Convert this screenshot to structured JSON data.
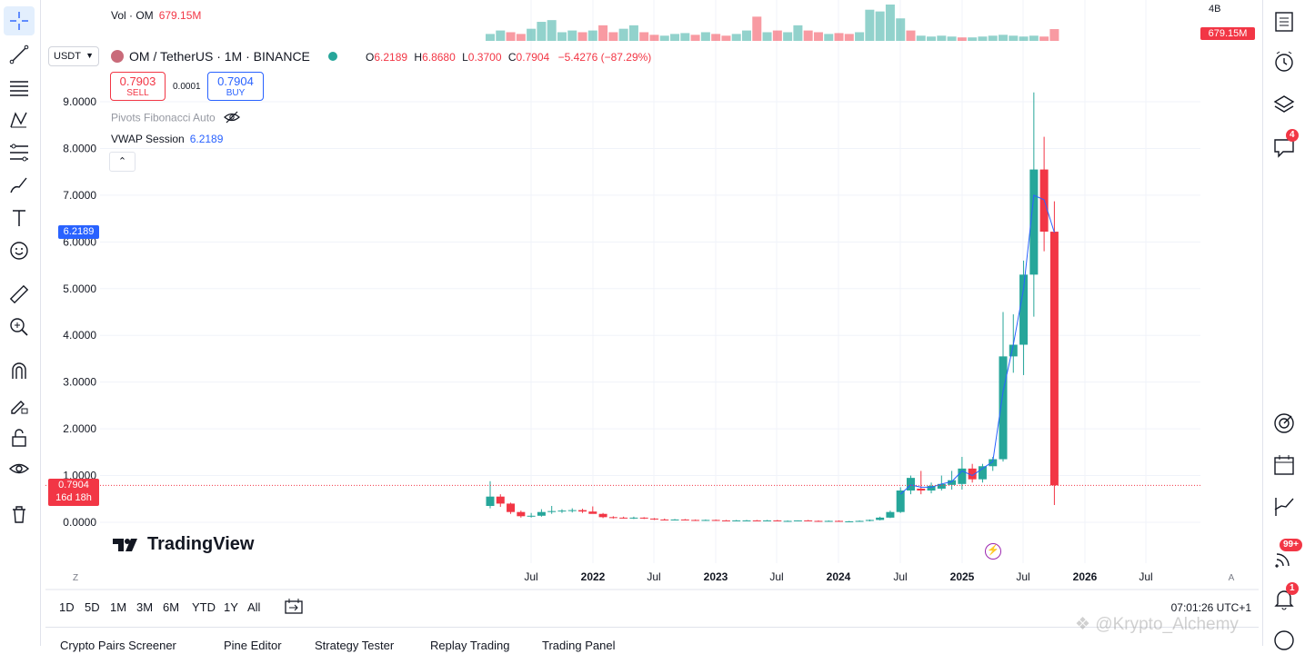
{
  "symbol_bar": {
    "currency": "USDT",
    "title": "OM / TetherUS · 1M · BINANCE"
  },
  "ohlc": {
    "o_label": "O",
    "o": "6.2189",
    "h_label": "H",
    "h": "6.8680",
    "l_label": "L",
    "l": "0.3700",
    "c_label": "C",
    "c": "0.7904",
    "change": "−5.4276 (−87.29%)"
  },
  "trade": {
    "sell_price": "0.7903",
    "sell_label": "SELL",
    "spread": "0.0001",
    "buy_price": "0.7904",
    "buy_label": "BUY"
  },
  "indicators": {
    "fib": "Pivots Fibonacci Auto",
    "vwap_name": "VWAP Session",
    "vwap_value": "6.2189"
  },
  "volume": {
    "label": "Vol · OM",
    "value": "679.15M",
    "scale_top": "4B",
    "badge": "679.15M"
  },
  "price_axis": {
    "ticks": [
      "9.0000",
      "8.0000",
      "7.0000",
      "6.0000",
      "5.0000",
      "4.0000",
      "3.0000",
      "2.0000",
      "1.0000",
      "0.0000"
    ],
    "vwap_badge": "6.2189",
    "last_price_badge": "0.7904",
    "countdown": "16d 18h"
  },
  "time_axis": {
    "ticks": [
      {
        "label": "Jul",
        "bold": false
      },
      {
        "label": "2022",
        "bold": true
      },
      {
        "label": "Jul",
        "bold": false
      },
      {
        "label": "2023",
        "bold": true
      },
      {
        "label": "Jul",
        "bold": false
      },
      {
        "label": "2024",
        "bold": true
      },
      {
        "label": "Jul",
        "bold": false
      },
      {
        "label": "2025",
        "bold": true
      },
      {
        "label": "Jul",
        "bold": false
      },
      {
        "label": "2026",
        "bold": true
      },
      {
        "label": "Jul",
        "bold": false
      }
    ],
    "z_label": "Z",
    "a_label": "A"
  },
  "timeframes": [
    "1D",
    "5D",
    "1M",
    "3M",
    "6M",
    "YTD",
    "1Y",
    "All"
  ],
  "clock": "07:01:26 UTC+1",
  "panel_tabs": [
    "Crypto Pairs Screener",
    "Pine Editor",
    "Strategy Tester",
    "Replay Trading",
    "Trading Panel"
  ],
  "branding": {
    "logo_text": "TradingView",
    "watermark": "@Krypto_Alchemy"
  },
  "badges": {
    "chat": "4",
    "news": "99+",
    "alerts": "1"
  },
  "colors": {
    "up": "#26a69a",
    "down": "#f23645",
    "vwap": "#2962ff",
    "accent": "#2962ff"
  },
  "candles": [
    {
      "t": 0,
      "o": 0.35,
      "h": 0.88,
      "l": 0.3,
      "c": 0.55
    },
    {
      "t": 1,
      "o": 0.55,
      "h": 0.6,
      "l": 0.33,
      "c": 0.4
    },
    {
      "t": 2,
      "o": 0.4,
      "h": 0.42,
      "l": 0.18,
      "c": 0.22
    },
    {
      "t": 3,
      "o": 0.22,
      "h": 0.25,
      "l": 0.1,
      "c": 0.13
    },
    {
      "t": 4,
      "o": 0.13,
      "h": 0.2,
      "l": 0.1,
      "c": 0.14
    },
    {
      "t": 5,
      "o": 0.14,
      "h": 0.28,
      "l": 0.12,
      "c": 0.22
    },
    {
      "t": 6,
      "o": 0.22,
      "h": 0.35,
      "l": 0.18,
      "c": 0.24
    },
    {
      "t": 7,
      "o": 0.24,
      "h": 0.28,
      "l": 0.2,
      "c": 0.25
    },
    {
      "t": 8,
      "o": 0.25,
      "h": 0.3,
      "l": 0.21,
      "c": 0.26
    },
    {
      "t": 9,
      "o": 0.26,
      "h": 0.29,
      "l": 0.2,
      "c": 0.23
    },
    {
      "t": 10,
      "o": 0.23,
      "h": 0.34,
      "l": 0.2,
      "c": 0.18
    },
    {
      "t": 11,
      "o": 0.18,
      "h": 0.2,
      "l": 0.09,
      "c": 0.11
    },
    {
      "t": 12,
      "o": 0.11,
      "h": 0.13,
      "l": 0.08,
      "c": 0.1
    },
    {
      "t": 13,
      "o": 0.1,
      "h": 0.12,
      "l": 0.08,
      "c": 0.09
    },
    {
      "t": 14,
      "o": 0.09,
      "h": 0.12,
      "l": 0.07,
      "c": 0.1
    },
    {
      "t": 15,
      "o": 0.1,
      "h": 0.11,
      "l": 0.07,
      "c": 0.08
    },
    {
      "t": 16,
      "o": 0.08,
      "h": 0.09,
      "l": 0.05,
      "c": 0.06
    },
    {
      "t": 17,
      "o": 0.06,
      "h": 0.08,
      "l": 0.04,
      "c": 0.05
    },
    {
      "t": 18,
      "o": 0.05,
      "h": 0.07,
      "l": 0.04,
      "c": 0.06
    },
    {
      "t": 19,
      "o": 0.06,
      "h": 0.07,
      "l": 0.04,
      "c": 0.05
    },
    {
      "t": 20,
      "o": 0.05,
      "h": 0.06,
      "l": 0.03,
      "c": 0.04
    },
    {
      "t": 21,
      "o": 0.04,
      "h": 0.06,
      "l": 0.03,
      "c": 0.05
    },
    {
      "t": 22,
      "o": 0.05,
      "h": 0.06,
      "l": 0.03,
      "c": 0.04
    },
    {
      "t": 23,
      "o": 0.04,
      "h": 0.05,
      "l": 0.03,
      "c": 0.03
    },
    {
      "t": 24,
      "o": 0.03,
      "h": 0.05,
      "l": 0.02,
      "c": 0.04
    },
    {
      "t": 25,
      "o": 0.04,
      "h": 0.05,
      "l": 0.03,
      "c": 0.04
    },
    {
      "t": 26,
      "o": 0.04,
      "h": 0.05,
      "l": 0.03,
      "c": 0.03
    },
    {
      "t": 27,
      "o": 0.03,
      "h": 0.05,
      "l": 0.02,
      "c": 0.04
    },
    {
      "t": 28,
      "o": 0.04,
      "h": 0.05,
      "l": 0.02,
      "c": 0.03
    },
    {
      "t": 29,
      "o": 0.03,
      "h": 0.04,
      "l": 0.02,
      "c": 0.03
    },
    {
      "t": 30,
      "o": 0.03,
      "h": 0.04,
      "l": 0.02,
      "c": 0.04
    },
    {
      "t": 31,
      "o": 0.04,
      "h": 0.05,
      "l": 0.03,
      "c": 0.03
    },
    {
      "t": 32,
      "o": 0.03,
      "h": 0.04,
      "l": 0.02,
      "c": 0.02
    },
    {
      "t": 33,
      "o": 0.02,
      "h": 0.04,
      "l": 0.02,
      "c": 0.03
    },
    {
      "t": 34,
      "o": 0.03,
      "h": 0.04,
      "l": 0.02,
      "c": 0.02
    },
    {
      "t": 35,
      "o": 0.02,
      "h": 0.03,
      "l": 0.02,
      "c": 0.02
    },
    {
      "t": 36,
      "o": 0.02,
      "h": 0.04,
      "l": 0.02,
      "c": 0.03
    },
    {
      "t": 37,
      "o": 0.03,
      "h": 0.06,
      "l": 0.02,
      "c": 0.05
    },
    {
      "t": 38,
      "o": 0.05,
      "h": 0.12,
      "l": 0.04,
      "c": 0.1
    },
    {
      "t": 39,
      "o": 0.1,
      "h": 0.25,
      "l": 0.09,
      "c": 0.22
    },
    {
      "t": 40,
      "o": 0.22,
      "h": 0.75,
      "l": 0.2,
      "c": 0.68
    },
    {
      "t": 41,
      "o": 0.68,
      "h": 1.0,
      "l": 0.6,
      "c": 0.95
    },
    {
      "t": 42,
      "o": 0.72,
      "h": 1.1,
      "l": 0.6,
      "c": 0.68
    },
    {
      "t": 43,
      "o": 0.68,
      "h": 0.85,
      "l": 0.62,
      "c": 0.78
    },
    {
      "t": 44,
      "o": 0.72,
      "h": 1.0,
      "l": 0.68,
      "c": 0.82
    },
    {
      "t": 45,
      "o": 0.8,
      "h": 1.1,
      "l": 0.7,
      "c": 0.9
    },
    {
      "t": 46,
      "o": 0.82,
      "h": 1.4,
      "l": 0.7,
      "c": 1.15
    },
    {
      "t": 47,
      "o": 1.15,
      "h": 1.25,
      "l": 0.85,
      "c": 0.92
    },
    {
      "t": 48,
      "o": 0.92,
      "h": 1.25,
      "l": 0.85,
      "c": 1.2
    },
    {
      "t": 49,
      "o": 1.2,
      "h": 1.4,
      "l": 1.1,
      "c": 1.35
    },
    {
      "t": 50,
      "o": 1.35,
      "h": 4.5,
      "l": 1.3,
      "c": 3.55
    },
    {
      "t": 51,
      "o": 3.55,
      "h": 4.45,
      "l": 3.2,
      "c": 3.8
    },
    {
      "t": 52,
      "o": 3.8,
      "h": 5.6,
      "l": 3.15,
      "c": 5.3
    },
    {
      "t": 53,
      "o": 5.3,
      "h": 9.2,
      "l": 4.4,
      "c": 7.55
    },
    {
      "t": 54,
      "o": 7.55,
      "h": 8.25,
      "l": 5.8,
      "c": 6.22
    },
    {
      "t": 55,
      "o": 6.2189,
      "h": 6.868,
      "l": 0.37,
      "c": 0.7904
    }
  ],
  "vwap_points": [
    {
      "t": 40,
      "v": 0.6
    },
    {
      "t": 41,
      "v": 0.8
    },
    {
      "t": 42,
      "v": 0.75
    },
    {
      "t": 43,
      "v": 0.75
    },
    {
      "t": 44,
      "v": 0.82
    },
    {
      "t": 45,
      "v": 0.87
    },
    {
      "t": 46,
      "v": 1.1
    },
    {
      "t": 47,
      "v": 1.0
    },
    {
      "t": 48,
      "v": 1.15
    },
    {
      "t": 49,
      "v": 1.3
    },
    {
      "t": 50,
      "v": 2.8
    },
    {
      "t": 51,
      "v": 3.8
    },
    {
      "t": 52,
      "v": 5.0
    },
    {
      "t": 53,
      "v": 7.0
    },
    {
      "t": 54,
      "v": 6.9
    },
    {
      "t": 55,
      "v": 6.2
    }
  ],
  "volume_bars": [
    {
      "t": 0,
      "v": 0.4,
      "up": true
    },
    {
      "t": 1,
      "v": 0.6,
      "up": true
    },
    {
      "t": 2,
      "v": 0.5,
      "up": false
    },
    {
      "t": 3,
      "v": 0.4,
      "up": false
    },
    {
      "t": 4,
      "v": 0.7,
      "up": true
    },
    {
      "t": 5,
      "v": 1.1,
      "up": true
    },
    {
      "t": 6,
      "v": 1.2,
      "up": true
    },
    {
      "t": 7,
      "v": 0.5,
      "up": true
    },
    {
      "t": 8,
      "v": 0.6,
      "up": true
    },
    {
      "t": 9,
      "v": 0.5,
      "up": false
    },
    {
      "t": 10,
      "v": 0.6,
      "up": true
    },
    {
      "t": 11,
      "v": 0.9,
      "up": false
    },
    {
      "t": 12,
      "v": 0.5,
      "up": false
    },
    {
      "t": 13,
      "v": 0.7,
      "up": true
    },
    {
      "t": 14,
      "v": 0.9,
      "up": true
    },
    {
      "t": 15,
      "v": 0.5,
      "up": false
    },
    {
      "t": 16,
      "v": 0.35,
      "up": false
    },
    {
      "t": 17,
      "v": 0.3,
      "up": true
    },
    {
      "t": 18,
      "v": 0.4,
      "up": true
    },
    {
      "t": 19,
      "v": 0.45,
      "up": true
    },
    {
      "t": 20,
      "v": 0.35,
      "up": false
    },
    {
      "t": 21,
      "v": 0.5,
      "up": true
    },
    {
      "t": 22,
      "v": 0.4,
      "up": false
    },
    {
      "t": 23,
      "v": 0.3,
      "up": false
    },
    {
      "t": 24,
      "v": 0.4,
      "up": true
    },
    {
      "t": 25,
      "v": 0.6,
      "up": true
    },
    {
      "t": 26,
      "v": 1.4,
      "up": false
    },
    {
      "t": 27,
      "v": 0.5,
      "up": true
    },
    {
      "t": 28,
      "v": 0.6,
      "up": false
    },
    {
      "t": 29,
      "v": 0.5,
      "up": true
    },
    {
      "t": 30,
      "v": 0.9,
      "up": true
    },
    {
      "t": 31,
      "v": 0.6,
      "up": false
    },
    {
      "t": 32,
      "v": 0.5,
      "up": false
    },
    {
      "t": 33,
      "v": 0.4,
      "up": true
    },
    {
      "t": 34,
      "v": 0.45,
      "up": false
    },
    {
      "t": 35,
      "v": 0.4,
      "up": false
    },
    {
      "t": 36,
      "v": 0.5,
      "up": true
    },
    {
      "t": 37,
      "v": 1.8,
      "up": true
    },
    {
      "t": 38,
      "v": 1.7,
      "up": true
    },
    {
      "t": 39,
      "v": 2.1,
      "up": true
    },
    {
      "t": 40,
      "v": 1.3,
      "up": true
    },
    {
      "t": 41,
      "v": 0.6,
      "up": false
    },
    {
      "t": 42,
      "v": 0.3,
      "up": true
    },
    {
      "t": 43,
      "v": 0.25,
      "up": true
    },
    {
      "t": 44,
      "v": 0.3,
      "up": true
    },
    {
      "t": 45,
      "v": 0.25,
      "up": true
    },
    {
      "t": 46,
      "v": 0.2,
      "up": false
    },
    {
      "t": 47,
      "v": 0.2,
      "up": true
    },
    {
      "t": 48,
      "v": 0.25,
      "up": true
    },
    {
      "t": 49,
      "v": 0.3,
      "up": true
    },
    {
      "t": 50,
      "v": 0.35,
      "up": true
    },
    {
      "t": 51,
      "v": 0.3,
      "up": true
    },
    {
      "t": 52,
      "v": 0.25,
      "up": true
    },
    {
      "t": 53,
      "v": 0.3,
      "up": true
    },
    {
      "t": 54,
      "v": 0.25,
      "up": false
    },
    {
      "t": 55,
      "v": 0.68,
      "up": false
    }
  ]
}
